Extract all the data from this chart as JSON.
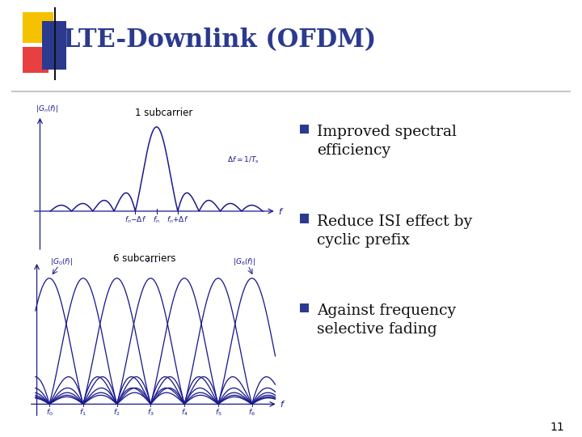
{
  "title": "LTE-Downlink (OFDM)",
  "title_color": "#2B3A8F",
  "title_fontsize": 22,
  "background_color": "#FFFFFF",
  "bullet_points": [
    "Improved spectral\nefficiency",
    "Reduce ISI effect by\ncyclic prefix",
    "Against frequency\nselective fading"
  ],
  "bullet_color": "#111111",
  "bullet_fontsize": 13.5,
  "bullet_marker_color": "#2B3A8F",
  "slide_number": "11",
  "ofdm_line_color": "#1A1A8C",
  "decoration_yellow": "#F5C200",
  "decoration_red": "#E84040",
  "decoration_darkblue": "#2B3A8F",
  "decoration_purple": "#6060B0",
  "sep_line_color": "#BBBBBB",
  "n_carriers": 7,
  "carrier_labels": [
    "f_0",
    "f_1",
    "f_2",
    "f_3",
    "f_4",
    "f_5",
    "f_6"
  ]
}
